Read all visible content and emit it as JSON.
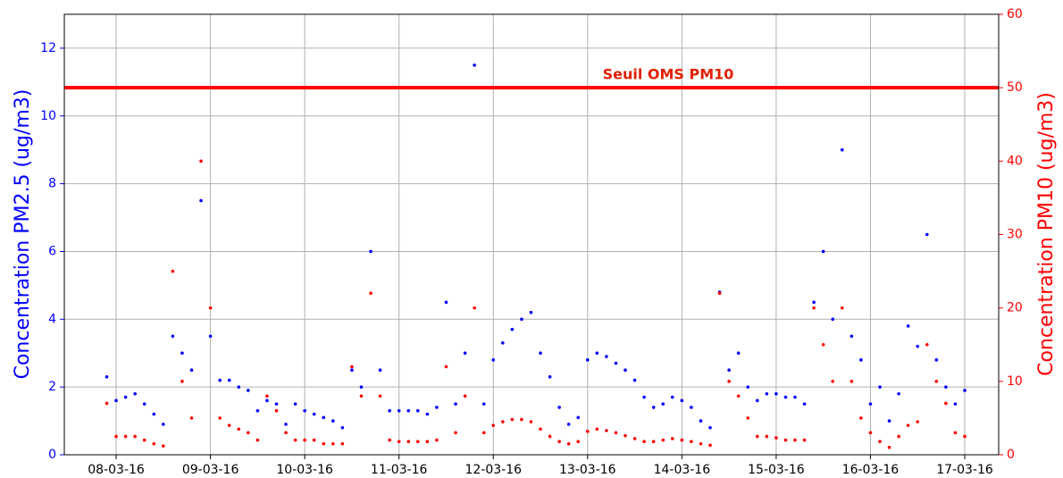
{
  "chart_data": {
    "type": "scatter",
    "xlabel": null,
    "ylabel": "Concentration PM2.5 (ug/m3)",
    "y2label": "Concentration PM10 (ug/m3)",
    "x": [
      7.9,
      8.0,
      8.1,
      8.2,
      8.3,
      8.4,
      8.5,
      8.6,
      8.7,
      8.8,
      8.9,
      9.0,
      9.1,
      9.2,
      9.3,
      9.4,
      9.5,
      9.6,
      9.7,
      9.8,
      9.9,
      10.0,
      10.1,
      10.2,
      10.3,
      10.4,
      10.5,
      10.6,
      10.7,
      10.8,
      10.9,
      11.0,
      11.1,
      11.2,
      11.3,
      11.4,
      11.5,
      11.6,
      11.7,
      11.8,
      11.9,
      12.0,
      12.1,
      12.2,
      12.3,
      12.4,
      12.5,
      12.6,
      12.7,
      12.8,
      12.9,
      13.0,
      13.1,
      13.2,
      13.3,
      13.4,
      13.5,
      13.6,
      13.7,
      13.8,
      13.9,
      14.0,
      14.1,
      14.2,
      14.3,
      14.4,
      14.5,
      14.6,
      14.7,
      14.8,
      14.9,
      15.0,
      15.1,
      15.2,
      15.3,
      15.4,
      15.5,
      15.6,
      15.7,
      15.8,
      15.9,
      16.0,
      16.1,
      16.2,
      16.3,
      16.4,
      16.5,
      16.6,
      16.7,
      16.8,
      16.9,
      17.0
    ],
    "series": [
      {
        "name": "PM2.5",
        "color": "#0000ff",
        "axis": "y",
        "values": [
          2.3,
          1.6,
          1.7,
          1.8,
          1.5,
          1.2,
          0.9,
          3.5,
          3.0,
          2.5,
          7.5,
          3.5,
          2.2,
          2.2,
          2.0,
          1.9,
          1.3,
          1.6,
          1.5,
          0.9,
          1.5,
          1.3,
          1.2,
          1.1,
          1.0,
          0.8,
          2.5,
          2.0,
          6.0,
          2.5,
          1.3,
          1.3,
          1.3,
          1.3,
          1.2,
          1.4,
          4.5,
          1.5,
          3.0,
          11.5,
          1.5,
          2.8,
          3.3,
          3.7,
          4.0,
          4.2,
          3.0,
          2.3,
          1.4,
          0.9,
          1.1,
          2.8,
          3.0,
          2.9,
          2.7,
          2.5,
          2.2,
          1.7,
          1.4,
          1.5,
          1.7,
          1.6,
          1.4,
          1.0,
          0.8,
          4.8,
          2.5,
          3.0,
          2.0,
          1.6,
          1.8,
          1.8,
          1.7,
          1.7,
          1.5,
          4.5,
          6.0,
          4.0,
          9.0,
          3.5,
          2.8,
          1.5,
          2.0,
          1.0,
          1.8,
          3.8,
          3.2,
          6.5,
          2.8,
          2.0,
          1.5,
          1.9
        ]
      },
      {
        "name": "PM10",
        "color": "#ff0000",
        "axis": "y2",
        "values": [
          7,
          2.5,
          2.5,
          2.5,
          2.0,
          1.5,
          1.2,
          25,
          10,
          5,
          40,
          20,
          5,
          4,
          3.5,
          3,
          2,
          8,
          6,
          3,
          2,
          2,
          2,
          1.5,
          1.5,
          1.5,
          12,
          8,
          22,
          8,
          2,
          1.8,
          1.8,
          1.8,
          1.8,
          2,
          12,
          3,
          8,
          20,
          3,
          4,
          4.5,
          4.8,
          4.8,
          4.5,
          3.5,
          2.5,
          1.8,
          1.5,
          1.8,
          3.2,
          3.5,
          3.3,
          3.0,
          2.6,
          2.2,
          1.8,
          1.8,
          2.0,
          2.2,
          2.0,
          1.8,
          1.5,
          1.3,
          22,
          10,
          8,
          5,
          2.5,
          2.5,
          2.3,
          2.0,
          2.0,
          2.0,
          20,
          15,
          10,
          20,
          10,
          5,
          3,
          1.8,
          1.0,
          2.5,
          4,
          4.5,
          15,
          10,
          7,
          3,
          2.5
        ]
      }
    ],
    "threshold": {
      "value": 50,
      "label": "Seuil OMS PM10",
      "axis": "y2",
      "color": "#ff0000"
    },
    "xlim": [
      7.45,
      17.36
    ],
    "xticks": [
      {
        "value": 8,
        "label": "08-03-16"
      },
      {
        "value": 9,
        "label": "09-03-16"
      },
      {
        "value": 10,
        "label": "10-03-16"
      },
      {
        "value": 11,
        "label": "11-03-16"
      },
      {
        "value": 12,
        "label": "12-03-16"
      },
      {
        "value": 13,
        "label": "13-03-16"
      },
      {
        "value": 14,
        "label": "14-03-16"
      },
      {
        "value": 15,
        "label": "15-03-16"
      },
      {
        "value": 16,
        "label": "16-03-16"
      },
      {
        "value": 17,
        "label": "17-03-16"
      }
    ],
    "ylim": [
      0,
      13
    ],
    "yticks": [
      0,
      2,
      4,
      6,
      8,
      10,
      12
    ],
    "y2lim": [
      0,
      60
    ],
    "y2ticks": [
      0,
      10,
      20,
      30,
      40,
      50,
      60
    ],
    "grid": true
  }
}
